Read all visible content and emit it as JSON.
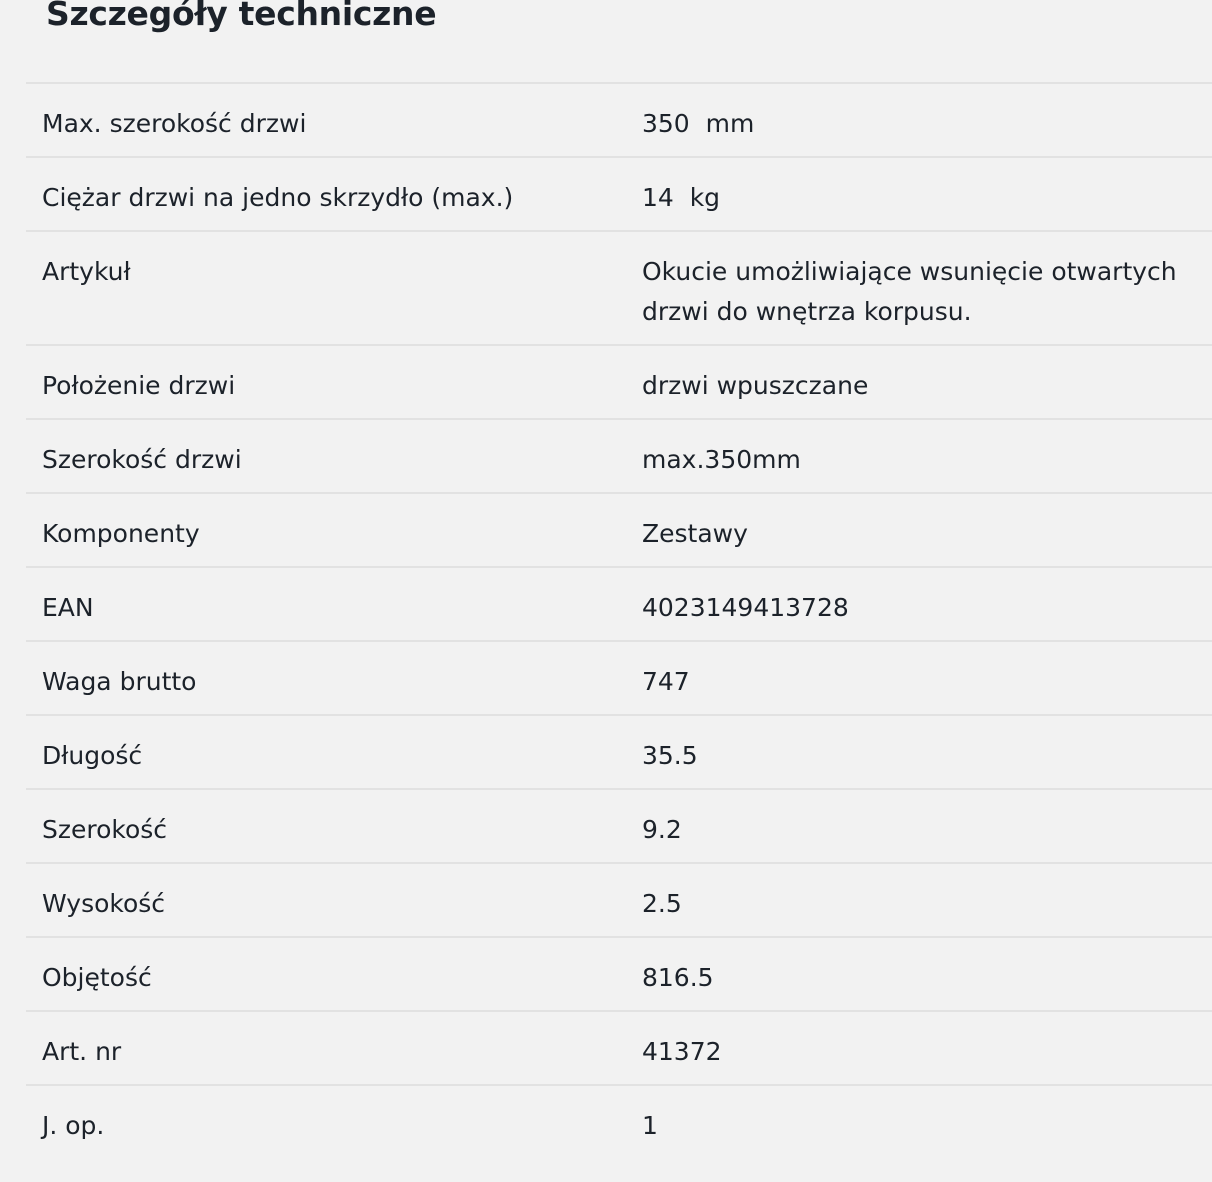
{
  "title": "Szczegóły techniczne",
  "rows": [
    {
      "label": "Max. szerokość drzwi",
      "value": "350  mm"
    },
    {
      "label": "Ciężar drzwi na jedno skrzydło (max.)",
      "value": "14  kg"
    },
    {
      "label": "Artykuł",
      "value": "Okucie umożliwiające wsunięcie otwartych drzwi do wnętrza korpusu."
    },
    {
      "label": "Położenie drzwi",
      "value": "drzwi wpuszczane"
    },
    {
      "label": "Szerokość drzwi",
      "value": "max.350mm"
    },
    {
      "label": "Komponenty",
      "value": "Zestawy"
    },
    {
      "label": "EAN",
      "value": "4023149413728"
    },
    {
      "label": "Waga brutto",
      "value": "747"
    },
    {
      "label": "Długość",
      "value": "35.5"
    },
    {
      "label": "Szerokość",
      "value": "9.2"
    },
    {
      "label": "Wysokość",
      "value": "2.5"
    },
    {
      "label": "Objętość",
      "value": "816.5"
    },
    {
      "label": "Art. nr",
      "value": "41372"
    },
    {
      "label": "J. op.",
      "value": "1"
    }
  ]
}
